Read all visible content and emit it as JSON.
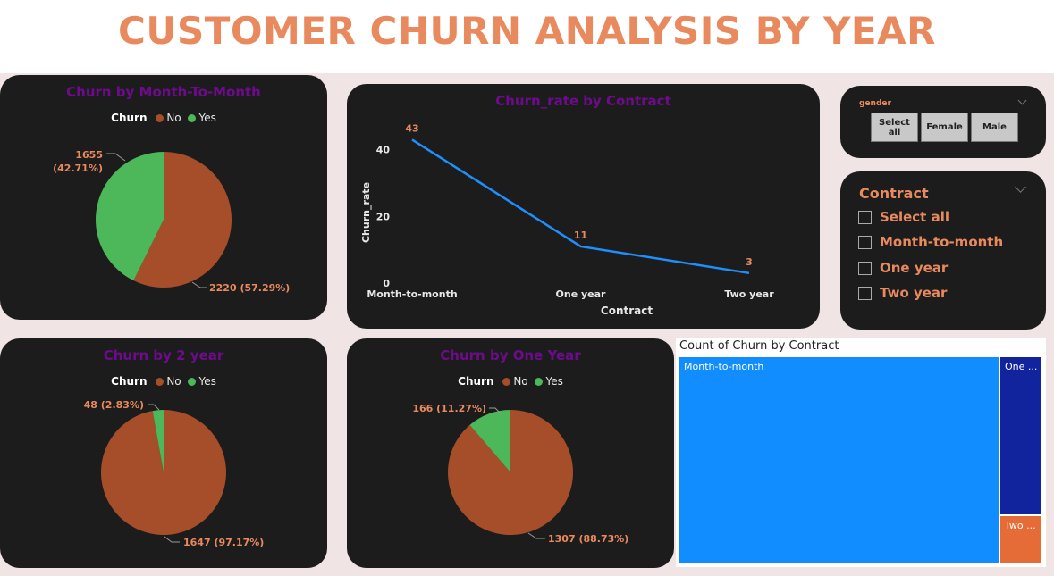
{
  "title": "CUSTOMER CHURN ANALYSIS BY YEAR",
  "colors": {
    "no": "#A64E2A",
    "yes": "#4CB85A",
    "line": "#1E8FFF",
    "accent": "#E8895E",
    "card_title": "#6E0B8C"
  },
  "pie_month": {
    "title": "Churn by Month-To-Month",
    "legend_title": "Churn",
    "legend_no": "No",
    "legend_yes": "Yes",
    "label_yes": "1655",
    "label_yes_pct": "(42.71%)",
    "label_no": "2220 (57.29%)"
  },
  "pie_two": {
    "title": "Churn by 2 year",
    "legend_title": "Churn",
    "legend_no": "No",
    "legend_yes": "Yes",
    "label_yes": "48 (2.83%)",
    "label_no": "1647 (97.17%)"
  },
  "pie_one": {
    "title": "Churn by One Year",
    "legend_title": "Churn",
    "legend_no": "No",
    "legend_yes": "Yes",
    "label_yes": "166 (11.27%)",
    "label_no": "1307 (88.73%)"
  },
  "line_chart": {
    "title": "Churn_rate by Contract",
    "xlabel": "Contract",
    "ylabel": "Churn_rate"
  },
  "gender_slicer": {
    "title": "gender",
    "options": [
      "Select all",
      "Female",
      "Male"
    ]
  },
  "contract_slicer": {
    "title": "Contract",
    "options": [
      "Select all",
      "Month-to-month",
      "One year",
      "Two year"
    ]
  },
  "treemap": {
    "title": "Count of Churn by Contract",
    "tiles": [
      {
        "label": "Month-to-month",
        "color": "#118DFF"
      },
      {
        "label": "One ...",
        "color": "#12239E"
      },
      {
        "label": "Two ...",
        "color": "#E66C37"
      }
    ]
  },
  "chart_data": [
    {
      "type": "pie",
      "title": "Churn by Month-To-Month",
      "legend_title": "Churn",
      "categories": [
        "No",
        "Yes"
      ],
      "values": [
        2220,
        1655
      ],
      "percents": [
        57.29,
        42.71
      ]
    },
    {
      "type": "line",
      "title": "Churn_rate by Contract",
      "xlabel": "Contract",
      "ylabel": "Churn_rate",
      "categories": [
        "Month-to-month",
        "One year",
        "Two year"
      ],
      "values": [
        43,
        11,
        3
      ],
      "yticks": [
        0,
        20,
        40
      ],
      "ylim": [
        0,
        45
      ],
      "grid": false
    },
    {
      "type": "pie",
      "title": "Churn by 2 year",
      "legend_title": "Churn",
      "categories": [
        "No",
        "Yes"
      ],
      "values": [
        1647,
        48
      ],
      "percents": [
        97.17,
        2.83
      ]
    },
    {
      "type": "pie",
      "title": "Churn by One Year",
      "legend_title": "Churn",
      "categories": [
        "No",
        "Yes"
      ],
      "values": [
        1307,
        166
      ],
      "percents": [
        88.73,
        11.27
      ]
    },
    {
      "type": "treemap",
      "title": "Count of Churn by Contract",
      "categories": [
        "Month-to-month",
        "One year",
        "Two year"
      ],
      "values": [
        1655,
        166,
        48
      ]
    }
  ]
}
